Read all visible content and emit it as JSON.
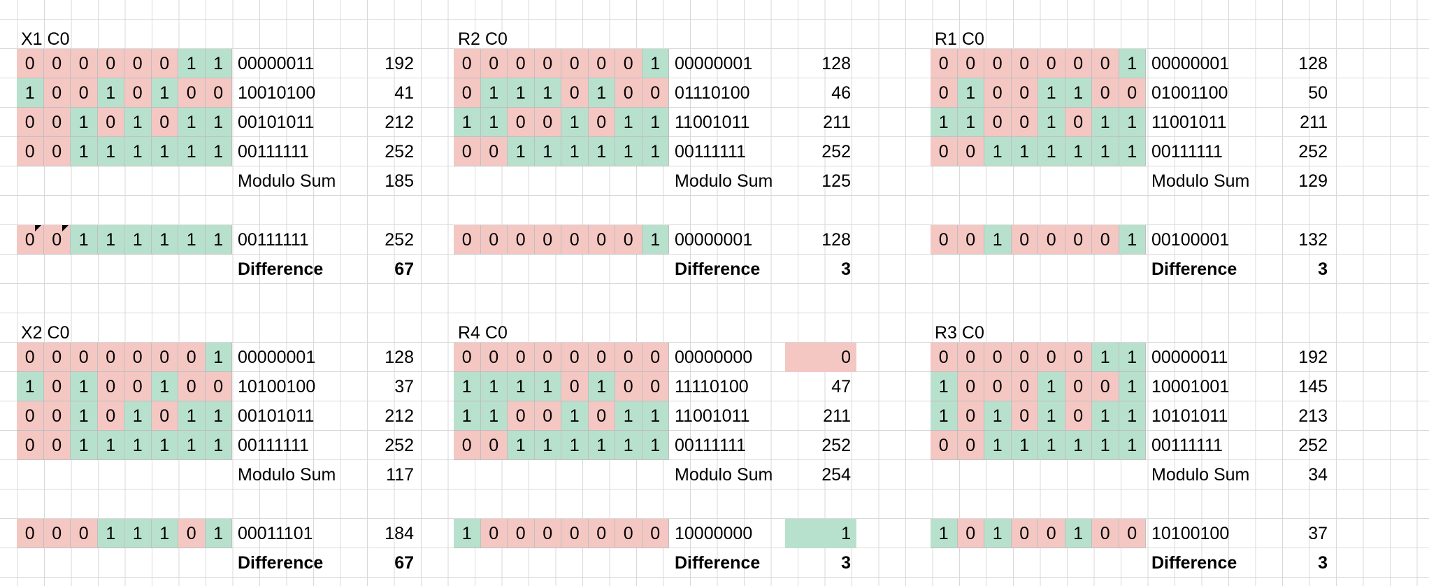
{
  "blocks": [
    {
      "title": "X1 C0",
      "rows": [
        {
          "bits": [
            "0",
            "0",
            "0",
            "0",
            "0",
            "0",
            "1",
            "1"
          ],
          "binary": "00000011",
          "value": "192"
        },
        {
          "bits": [
            "1",
            "0",
            "0",
            "1",
            "0",
            "1",
            "0",
            "0"
          ],
          "binary": "10010100",
          "value": "41"
        },
        {
          "bits": [
            "0",
            "0",
            "1",
            "0",
            "1",
            "0",
            "1",
            "1"
          ],
          "binary": "00101011",
          "value": "212"
        },
        {
          "bits": [
            "0",
            "0",
            "1",
            "1",
            "1",
            "1",
            "1",
            "1"
          ],
          "binary": "00111111",
          "value": "252"
        }
      ],
      "modulo_label": "Modulo Sum",
      "modulo_value": "185",
      "result": {
        "bits": [
          "0",
          "0",
          "1",
          "1",
          "1",
          "1",
          "1",
          "1"
        ],
        "binary": "00111111",
        "value": "252"
      },
      "diff_label": "Difference",
      "diff_value": "67"
    },
    {
      "title": "R2 C0",
      "rows": [
        {
          "bits": [
            "0",
            "0",
            "0",
            "0",
            "0",
            "0",
            "0",
            "1"
          ],
          "binary": "00000001",
          "value": "128"
        },
        {
          "bits": [
            "0",
            "1",
            "1",
            "1",
            "0",
            "1",
            "0",
            "0"
          ],
          "binary": "01110100",
          "value": "46"
        },
        {
          "bits": [
            "1",
            "1",
            "0",
            "0",
            "1",
            "0",
            "1",
            "1"
          ],
          "binary": "11001011",
          "value": "211"
        },
        {
          "bits": [
            "0",
            "0",
            "1",
            "1",
            "1",
            "1",
            "1",
            "1"
          ],
          "binary": "00111111",
          "value": "252"
        }
      ],
      "modulo_label": "Modulo Sum",
      "modulo_value": "125",
      "result": {
        "bits": [
          "0",
          "0",
          "0",
          "0",
          "0",
          "0",
          "0",
          "1"
        ],
        "binary": "00000001",
        "value": "128"
      },
      "diff_label": "Difference",
      "diff_value": "3"
    },
    {
      "title": "R1 C0",
      "rows": [
        {
          "bits": [
            "0",
            "0",
            "0",
            "0",
            "0",
            "0",
            "0",
            "1"
          ],
          "binary": "00000001",
          "value": "128"
        },
        {
          "bits": [
            "0",
            "1",
            "0",
            "0",
            "1",
            "1",
            "0",
            "0"
          ],
          "binary": "01001100",
          "value": "50"
        },
        {
          "bits": [
            "1",
            "1",
            "0",
            "0",
            "1",
            "0",
            "1",
            "1"
          ],
          "binary": "11001011",
          "value": "211"
        },
        {
          "bits": [
            "0",
            "0",
            "1",
            "1",
            "1",
            "1",
            "1",
            "1"
          ],
          "binary": "00111111",
          "value": "252"
        }
      ],
      "modulo_label": "Modulo Sum",
      "modulo_value": "129",
      "result": {
        "bits": [
          "0",
          "0",
          "1",
          "0",
          "0",
          "0",
          "0",
          "1"
        ],
        "binary": "00100001",
        "value": "132"
      },
      "diff_label": "Difference",
      "diff_value": "3"
    },
    {
      "title": "X2 C0",
      "rows": [
        {
          "bits": [
            "0",
            "0",
            "0",
            "0",
            "0",
            "0",
            "0",
            "1"
          ],
          "binary": "00000001",
          "value": "128"
        },
        {
          "bits": [
            "1",
            "0",
            "1",
            "0",
            "0",
            "1",
            "0",
            "0"
          ],
          "binary": "10100100",
          "value": "37"
        },
        {
          "bits": [
            "0",
            "0",
            "1",
            "0",
            "1",
            "0",
            "1",
            "1"
          ],
          "binary": "00101011",
          "value": "212"
        },
        {
          "bits": [
            "0",
            "0",
            "1",
            "1",
            "1",
            "1",
            "1",
            "1"
          ],
          "binary": "00111111",
          "value": "252"
        }
      ],
      "modulo_label": "Modulo Sum",
      "modulo_value": "117",
      "result": {
        "bits": [
          "0",
          "0",
          "0",
          "1",
          "1",
          "1",
          "0",
          "1"
        ],
        "binary": "00011101",
        "value": "184"
      },
      "diff_label": "Difference",
      "diff_value": "67"
    },
    {
      "title": "R4 C0",
      "rows": [
        {
          "bits": [
            "0",
            "0",
            "0",
            "0",
            "0",
            "0",
            "0",
            "0"
          ],
          "binary": "00000000",
          "value": "0",
          "highlight": "red"
        },
        {
          "bits": [
            "1",
            "1",
            "1",
            "1",
            "0",
            "1",
            "0",
            "0"
          ],
          "binary": "11110100",
          "value": "47"
        },
        {
          "bits": [
            "1",
            "1",
            "0",
            "0",
            "1",
            "0",
            "1",
            "1"
          ],
          "binary": "11001011",
          "value": "211"
        },
        {
          "bits": [
            "0",
            "0",
            "1",
            "1",
            "1",
            "1",
            "1",
            "1"
          ],
          "binary": "00111111",
          "value": "252"
        }
      ],
      "modulo_label": "Modulo Sum",
      "modulo_value": "254",
      "result": {
        "bits": [
          "1",
          "0",
          "0",
          "0",
          "0",
          "0",
          "0",
          "0"
        ],
        "binary": "10000000",
        "value": "1",
        "highlight": "green"
      },
      "diff_label": "Difference",
      "diff_value": "3"
    },
    {
      "title": "R3 C0",
      "rows": [
        {
          "bits": [
            "0",
            "0",
            "0",
            "0",
            "0",
            "0",
            "1",
            "1"
          ],
          "binary": "00000011",
          "value": "192"
        },
        {
          "bits": [
            "1",
            "0",
            "0",
            "0",
            "1",
            "0",
            "0",
            "1"
          ],
          "binary": "10001001",
          "value": "145"
        },
        {
          "bits": [
            "1",
            "0",
            "1",
            "0",
            "1",
            "0",
            "1",
            "1"
          ],
          "binary": "10101011",
          "value": "213"
        },
        {
          "bits": [
            "0",
            "0",
            "1",
            "1",
            "1",
            "1",
            "1",
            "1"
          ],
          "binary": "00111111",
          "value": "252"
        }
      ],
      "modulo_label": "Modulo Sum",
      "modulo_value": "34",
      "result": {
        "bits": [
          "1",
          "0",
          "1",
          "0",
          "0",
          "1",
          "0",
          "0"
        ],
        "binary": "10100100",
        "value": "37"
      },
      "diff_label": "Difference",
      "diff_value": "3"
    }
  ],
  "colors": {
    "bit_zero": "#f4c7c3",
    "bit_one": "#b7e1cd",
    "grid": "#d9d9d9"
  }
}
